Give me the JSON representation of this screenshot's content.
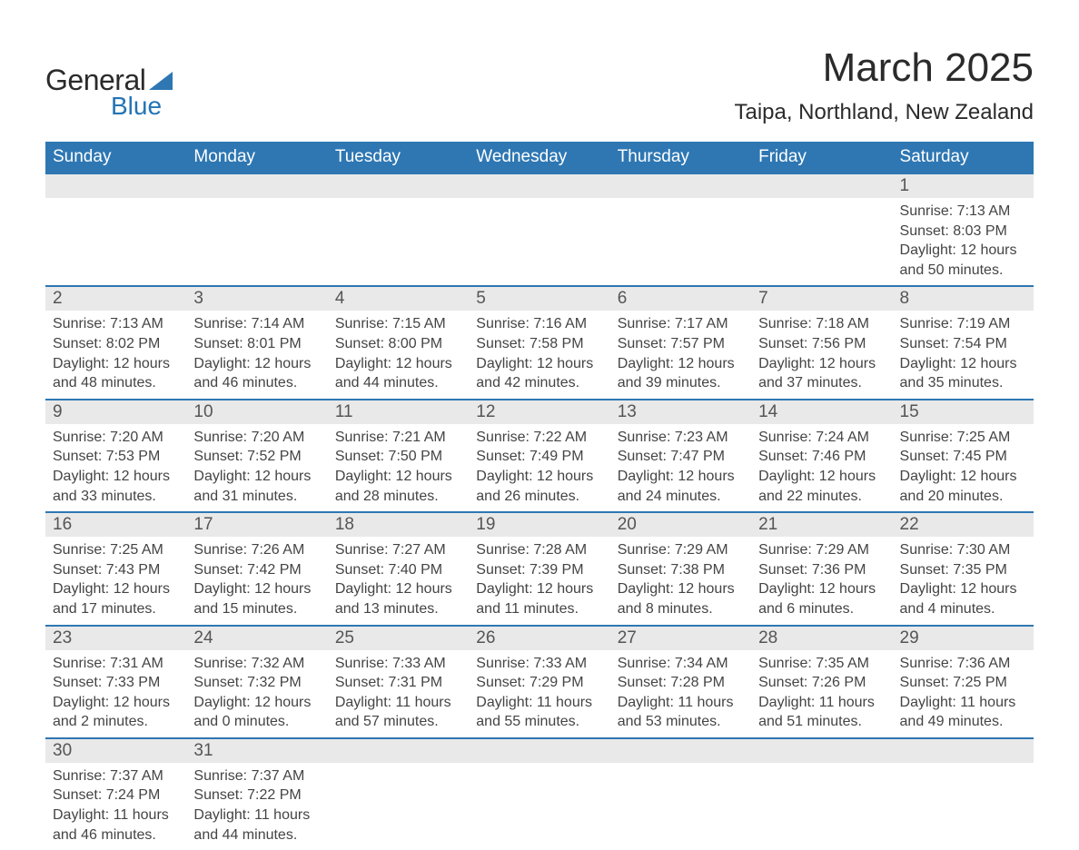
{
  "logo": {
    "word1": "General",
    "word2": "Blue",
    "tri_color": "#2e77b3"
  },
  "title": "March 2025",
  "location": "Taipa, Northland, New Zealand",
  "colors": {
    "header_bg": "#2e77b3",
    "header_text": "#ffffff",
    "daynum_bg": "#e9e9e9",
    "text": "#444444",
    "border": "#2e77b3"
  },
  "typography": {
    "title_fontsize": 44,
    "location_fontsize": 24,
    "header_fontsize": 19,
    "cell_fontsize": 16
  },
  "day_headers": [
    "Sunday",
    "Monday",
    "Tuesday",
    "Wednesday",
    "Thursday",
    "Friday",
    "Saturday"
  ],
  "weeks": [
    [
      null,
      null,
      null,
      null,
      null,
      null,
      {
        "n": "1",
        "sr": "Sunrise: 7:13 AM",
        "ss": "Sunset: 8:03 PM",
        "d1": "Daylight: 12 hours",
        "d2": "and 50 minutes."
      }
    ],
    [
      {
        "n": "2",
        "sr": "Sunrise: 7:13 AM",
        "ss": "Sunset: 8:02 PM",
        "d1": "Daylight: 12 hours",
        "d2": "and 48 minutes."
      },
      {
        "n": "3",
        "sr": "Sunrise: 7:14 AM",
        "ss": "Sunset: 8:01 PM",
        "d1": "Daylight: 12 hours",
        "d2": "and 46 minutes."
      },
      {
        "n": "4",
        "sr": "Sunrise: 7:15 AM",
        "ss": "Sunset: 8:00 PM",
        "d1": "Daylight: 12 hours",
        "d2": "and 44 minutes."
      },
      {
        "n": "5",
        "sr": "Sunrise: 7:16 AM",
        "ss": "Sunset: 7:58 PM",
        "d1": "Daylight: 12 hours",
        "d2": "and 42 minutes."
      },
      {
        "n": "6",
        "sr": "Sunrise: 7:17 AM",
        "ss": "Sunset: 7:57 PM",
        "d1": "Daylight: 12 hours",
        "d2": "and 39 minutes."
      },
      {
        "n": "7",
        "sr": "Sunrise: 7:18 AM",
        "ss": "Sunset: 7:56 PM",
        "d1": "Daylight: 12 hours",
        "d2": "and 37 minutes."
      },
      {
        "n": "8",
        "sr": "Sunrise: 7:19 AM",
        "ss": "Sunset: 7:54 PM",
        "d1": "Daylight: 12 hours",
        "d2": "and 35 minutes."
      }
    ],
    [
      {
        "n": "9",
        "sr": "Sunrise: 7:20 AM",
        "ss": "Sunset: 7:53 PM",
        "d1": "Daylight: 12 hours",
        "d2": "and 33 minutes."
      },
      {
        "n": "10",
        "sr": "Sunrise: 7:20 AM",
        "ss": "Sunset: 7:52 PM",
        "d1": "Daylight: 12 hours",
        "d2": "and 31 minutes."
      },
      {
        "n": "11",
        "sr": "Sunrise: 7:21 AM",
        "ss": "Sunset: 7:50 PM",
        "d1": "Daylight: 12 hours",
        "d2": "and 28 minutes."
      },
      {
        "n": "12",
        "sr": "Sunrise: 7:22 AM",
        "ss": "Sunset: 7:49 PM",
        "d1": "Daylight: 12 hours",
        "d2": "and 26 minutes."
      },
      {
        "n": "13",
        "sr": "Sunrise: 7:23 AM",
        "ss": "Sunset: 7:47 PM",
        "d1": "Daylight: 12 hours",
        "d2": "and 24 minutes."
      },
      {
        "n": "14",
        "sr": "Sunrise: 7:24 AM",
        "ss": "Sunset: 7:46 PM",
        "d1": "Daylight: 12 hours",
        "d2": "and 22 minutes."
      },
      {
        "n": "15",
        "sr": "Sunrise: 7:25 AM",
        "ss": "Sunset: 7:45 PM",
        "d1": "Daylight: 12 hours",
        "d2": "and 20 minutes."
      }
    ],
    [
      {
        "n": "16",
        "sr": "Sunrise: 7:25 AM",
        "ss": "Sunset: 7:43 PM",
        "d1": "Daylight: 12 hours",
        "d2": "and 17 minutes."
      },
      {
        "n": "17",
        "sr": "Sunrise: 7:26 AM",
        "ss": "Sunset: 7:42 PM",
        "d1": "Daylight: 12 hours",
        "d2": "and 15 minutes."
      },
      {
        "n": "18",
        "sr": "Sunrise: 7:27 AM",
        "ss": "Sunset: 7:40 PM",
        "d1": "Daylight: 12 hours",
        "d2": "and 13 minutes."
      },
      {
        "n": "19",
        "sr": "Sunrise: 7:28 AM",
        "ss": "Sunset: 7:39 PM",
        "d1": "Daylight: 12 hours",
        "d2": "and 11 minutes."
      },
      {
        "n": "20",
        "sr": "Sunrise: 7:29 AM",
        "ss": "Sunset: 7:38 PM",
        "d1": "Daylight: 12 hours",
        "d2": "and 8 minutes."
      },
      {
        "n": "21",
        "sr": "Sunrise: 7:29 AM",
        "ss": "Sunset: 7:36 PM",
        "d1": "Daylight: 12 hours",
        "d2": "and 6 minutes."
      },
      {
        "n": "22",
        "sr": "Sunrise: 7:30 AM",
        "ss": "Sunset: 7:35 PM",
        "d1": "Daylight: 12 hours",
        "d2": "and 4 minutes."
      }
    ],
    [
      {
        "n": "23",
        "sr": "Sunrise: 7:31 AM",
        "ss": "Sunset: 7:33 PM",
        "d1": "Daylight: 12 hours",
        "d2": "and 2 minutes."
      },
      {
        "n": "24",
        "sr": "Sunrise: 7:32 AM",
        "ss": "Sunset: 7:32 PM",
        "d1": "Daylight: 12 hours",
        "d2": "and 0 minutes."
      },
      {
        "n": "25",
        "sr": "Sunrise: 7:33 AM",
        "ss": "Sunset: 7:31 PM",
        "d1": "Daylight: 11 hours",
        "d2": "and 57 minutes."
      },
      {
        "n": "26",
        "sr": "Sunrise: 7:33 AM",
        "ss": "Sunset: 7:29 PM",
        "d1": "Daylight: 11 hours",
        "d2": "and 55 minutes."
      },
      {
        "n": "27",
        "sr": "Sunrise: 7:34 AM",
        "ss": "Sunset: 7:28 PM",
        "d1": "Daylight: 11 hours",
        "d2": "and 53 minutes."
      },
      {
        "n": "28",
        "sr": "Sunrise: 7:35 AM",
        "ss": "Sunset: 7:26 PM",
        "d1": "Daylight: 11 hours",
        "d2": "and 51 minutes."
      },
      {
        "n": "29",
        "sr": "Sunrise: 7:36 AM",
        "ss": "Sunset: 7:25 PM",
        "d1": "Daylight: 11 hours",
        "d2": "and 49 minutes."
      }
    ],
    [
      {
        "n": "30",
        "sr": "Sunrise: 7:37 AM",
        "ss": "Sunset: 7:24 PM",
        "d1": "Daylight: 11 hours",
        "d2": "and 46 minutes."
      },
      {
        "n": "31",
        "sr": "Sunrise: 7:37 AM",
        "ss": "Sunset: 7:22 PM",
        "d1": "Daylight: 11 hours",
        "d2": "and 44 minutes."
      },
      null,
      null,
      null,
      null,
      null
    ]
  ]
}
